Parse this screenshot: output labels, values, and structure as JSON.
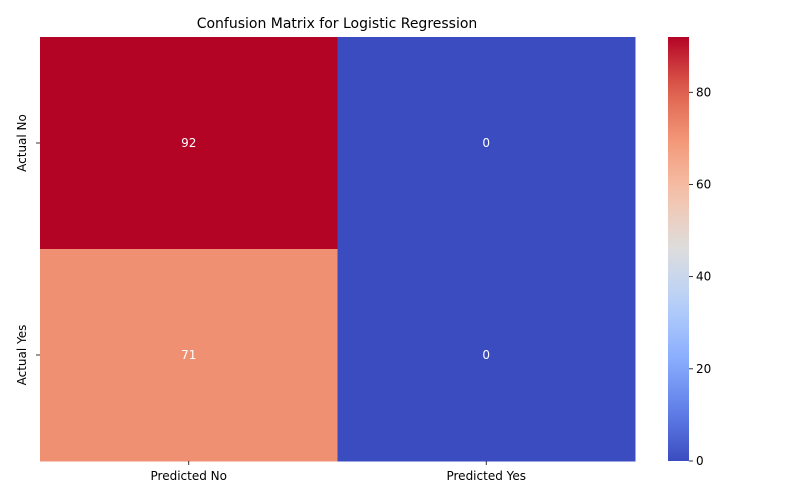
{
  "chart_data": {
    "type": "heatmap",
    "title": "Confusion Matrix for Logistic Regression",
    "x_categories": [
      "Predicted No",
      "Predicted Yes"
    ],
    "y_categories": [
      "Actual No",
      "Actual Yes"
    ],
    "values": [
      [
        92,
        0
      ],
      [
        71,
        0
      ]
    ],
    "colormap": "coolwarm",
    "colorbar": {
      "min": 0,
      "max": 92,
      "ticks": [
        0,
        20,
        40,
        60,
        80
      ]
    },
    "annotations": true,
    "grid": false
  }
}
